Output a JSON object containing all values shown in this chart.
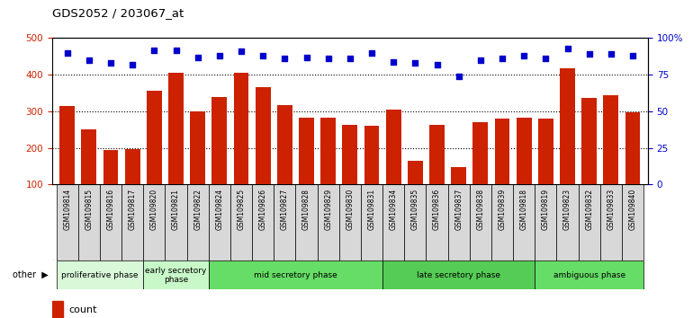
{
  "title": "GDS2052 / 203067_at",
  "samples": [
    "GSM109814",
    "GSM109815",
    "GSM109816",
    "GSM109817",
    "GSM109820",
    "GSM109821",
    "GSM109822",
    "GSM109824",
    "GSM109825",
    "GSM109826",
    "GSM109827",
    "GSM109828",
    "GSM109829",
    "GSM109830",
    "GSM109831",
    "GSM109834",
    "GSM109835",
    "GSM109836",
    "GSM109837",
    "GSM109838",
    "GSM109839",
    "GSM109818",
    "GSM109819",
    "GSM109823",
    "GSM109832",
    "GSM109833",
    "GSM109840"
  ],
  "counts": [
    315,
    250,
    195,
    197,
    357,
    405,
    300,
    340,
    405,
    365,
    318,
    283,
    283,
    263,
    260,
    305,
    165,
    263,
    147,
    270,
    280,
    283,
    280,
    418,
    337,
    343,
    298
  ],
  "percentiles": [
    90,
    85,
    83,
    82,
    92,
    92,
    87,
    88,
    91,
    88,
    86,
    87,
    86,
    86,
    90,
    84,
    83,
    82,
    74,
    85,
    86,
    88,
    86,
    93,
    89,
    89,
    88
  ],
  "phases": [
    {
      "name": "proliferative phase",
      "start": 0,
      "end": 4,
      "color": "#d8f8d8"
    },
    {
      "name": "early secretory\nphase",
      "start": 4,
      "end": 7,
      "color": "#c8f8c8"
    },
    {
      "name": "mid secretory phase",
      "start": 7,
      "end": 15,
      "color": "#66dd66"
    },
    {
      "name": "late secretory phase",
      "start": 15,
      "end": 22,
      "color": "#55cc55"
    },
    {
      "name": "ambiguous phase",
      "start": 22,
      "end": 27,
      "color": "#66dd66"
    }
  ],
  "bar_color": "#cc2200",
  "dot_color": "#0000cc",
  "ylim_left": [
    100,
    500
  ],
  "ylim_right": [
    0,
    100
  ],
  "yticks_left": [
    100,
    200,
    300,
    400,
    500
  ],
  "yticks_right": [
    0,
    25,
    50,
    75,
    100
  ],
  "tick_bg_color": "#d8d8d8",
  "chart_bg_color": "#ffffff"
}
